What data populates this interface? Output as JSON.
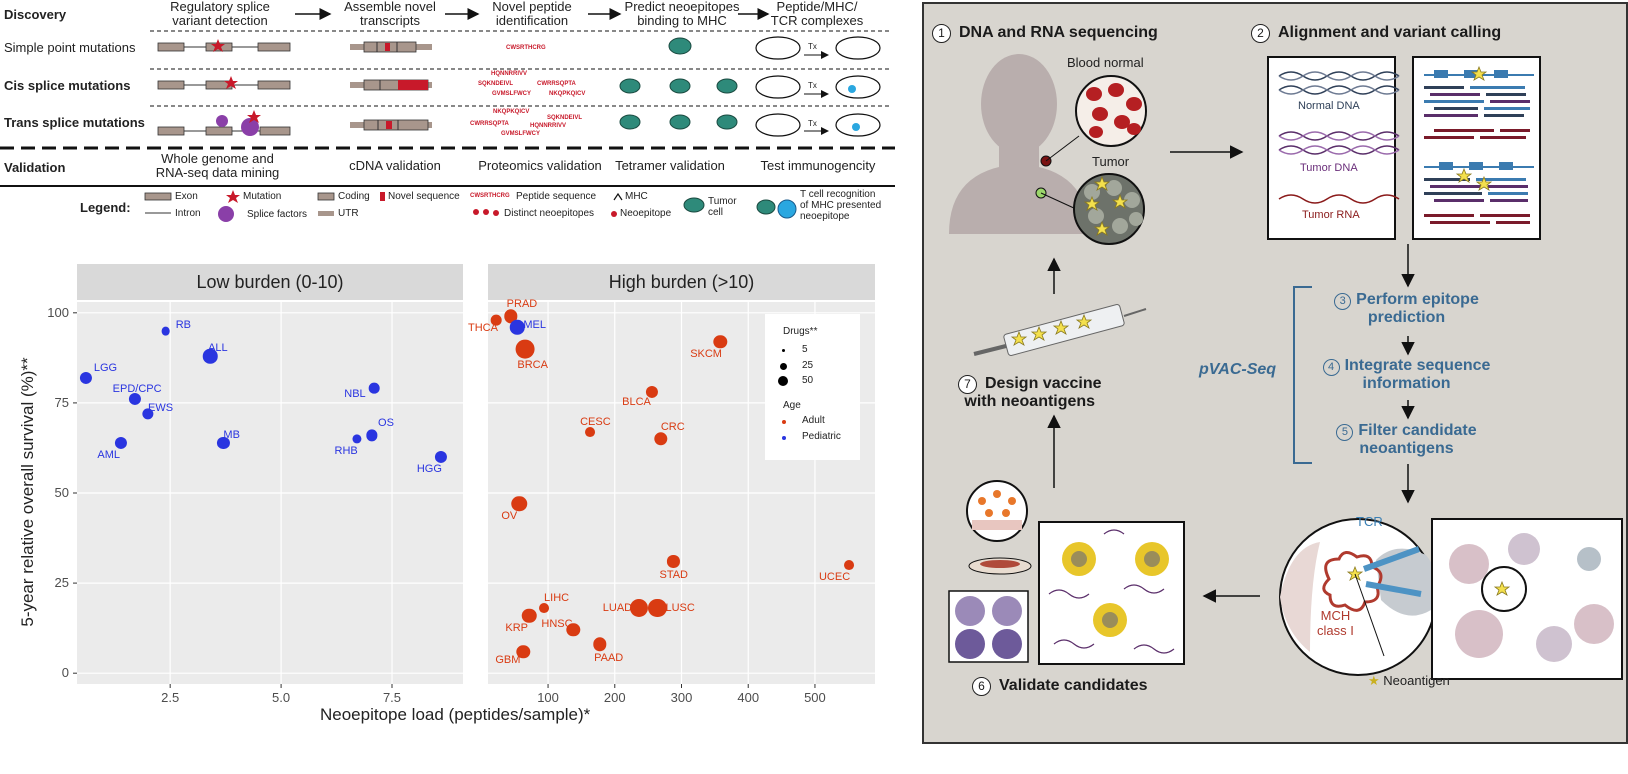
{
  "discovery": {
    "row_headers": {
      "discovery": "Discovery",
      "simple": "Simple point mutations",
      "cis": "Cis splice mutations",
      "trans": "Trans splice mutations",
      "validation": "Validation"
    },
    "steps": [
      "Regulatory splice\nvariant detection",
      "Assemble novel\ntranscripts",
      "Novel peptide\nidentification",
      "Predict neoepitopes\nbinding to MHC",
      "Peptide/MHC/\nTCR complexes"
    ],
    "validation_steps": [
      "Whole genome and\nRNA-seq data mining",
      "cDNA validation",
      "Proteomics validation",
      "Tetramer validation",
      "Test immunogencity"
    ],
    "peptides": {
      "simple": [
        "CWSRTHCRG"
      ],
      "cis": [
        "HQNNRRIVV",
        "SQKNDEIVL",
        "CWRRSQPTA",
        "GVMSLFWCY",
        "NKQPKQICV"
      ],
      "trans": [
        "NKQPKQICV",
        "SQKNDEIVL",
        "CWRRSQPTA",
        "HQNNRRIVV",
        "GVMSLFWCY"
      ]
    },
    "tx_label": "Tx",
    "legend": {
      "title": "Legend:",
      "exon": "Exon",
      "intron": "Intron",
      "mutation": "Mutation",
      "splice_factors": "Splice factors",
      "coding": "Coding",
      "utr": "UTR",
      "novel_sequence": "Novel sequence",
      "peptide_seq_sample": "CWSRTHCRG",
      "peptide_sequence": "Peptide sequence",
      "distinct_neoepitopes": "Distinct neoepitopes",
      "mhc": "MHC",
      "neoepitope": "Neoepitope",
      "tumor_cell": "Tumor\ncell",
      "tcell": "T cell recognition\nof MHC presented\nneoepitope"
    }
  },
  "scatter": {
    "facets": [
      "Low burden (0-10)",
      "High burden (>10)"
    ],
    "ylabel": "5-year relative overall survival (%)**",
    "xlabel": "Neoepitope load (peptides/sample)*",
    "legend": {
      "drugs_title": "Drugs**",
      "drug_sizes": [
        "5",
        "25",
        "50"
      ],
      "age_title": "Age",
      "adult": "Adult",
      "pediatric": "Pediatric"
    }
  },
  "chart_data": [
    {
      "type": "scatter",
      "title": "Low burden (0-10)",
      "xlim": [
        0.4,
        9.1
      ],
      "ylim": [
        -3,
        103
      ],
      "xticks": [
        "2.5",
        "5.0",
        "7.5"
      ],
      "xtick_values": [
        2.5,
        5.0,
        7.5
      ],
      "yticks": [
        "0",
        "25",
        "50",
        "75",
        "100"
      ],
      "ytick_values": [
        0,
        25,
        50,
        75,
        100
      ],
      "series": [
        {
          "name": "Pediatric",
          "color": "#2a35e0",
          "points": [
            {
              "label": "RB",
              "x": 2.4,
              "y": 95,
              "drugs": 5
            },
            {
              "label": "ALL",
              "x": 3.4,
              "y": 88,
              "drugs": 25
            },
            {
              "label": "LGG",
              "x": 0.6,
              "y": 82,
              "drugs": 15
            },
            {
              "label": "EPD/CPC",
              "x": 1.7,
              "y": 76,
              "drugs": 15
            },
            {
              "label": "EWS",
              "x": 2.0,
              "y": 72,
              "drugs": 12
            },
            {
              "label": "AML",
              "x": 1.4,
              "y": 64,
              "drugs": 15
            },
            {
              "label": "MB",
              "x": 3.7,
              "y": 64,
              "drugs": 15
            },
            {
              "label": "NBL",
              "x": 7.1,
              "y": 79,
              "drugs": 10
            },
            {
              "label": "OS",
              "x": 7.05,
              "y": 66,
              "drugs": 12
            },
            {
              "label": "RHB",
              "x": 6.7,
              "y": 65,
              "drugs": 6
            },
            {
              "label": "HGG",
              "x": 8.6,
              "y": 60,
              "drugs": 15
            }
          ]
        }
      ]
    },
    {
      "type": "scatter",
      "title": "High burden (>10)",
      "xlim": [
        10,
        590
      ],
      "ylim": [
        -3,
        103
      ],
      "xticks": [
        "100",
        "200",
        "300",
        "400",
        "500"
      ],
      "xtick_values": [
        100,
        200,
        300,
        400,
        500
      ],
      "yticks": [
        "0",
        "25",
        "50",
        "75",
        "100"
      ],
      "ytick_values": [
        0,
        25,
        50,
        75,
        100
      ],
      "series": [
        {
          "name": "Adult",
          "color": "#d93b12",
          "points": [
            {
              "label": "THCA",
              "x": 22,
              "y": 98,
              "drugs": 10
            },
            {
              "label": "PRAD",
              "x": 44,
              "y": 99,
              "drugs": 20
            },
            {
              "label": "BRCA",
              "x": 66,
              "y": 90,
              "drugs": 50
            },
            {
              "label": "SKCM",
              "x": 358,
              "y": 92,
              "drugs": 20
            },
            {
              "label": "BLCA",
              "x": 256,
              "y": 78,
              "drugs": 15
            },
            {
              "label": "CESC",
              "x": 163,
              "y": 67,
              "drugs": 8
            },
            {
              "label": "CRC",
              "x": 269,
              "y": 65,
              "drugs": 20
            },
            {
              "label": "OV",
              "x": 57,
              "y": 47,
              "drugs": 30
            },
            {
              "label": "STAD",
              "x": 288,
              "y": 31,
              "drugs": 15
            },
            {
              "label": "UCEC",
              "x": 551,
              "y": 30,
              "drugs": 8
            },
            {
              "label": "LIHC",
              "x": 94,
              "y": 18,
              "drugs": 8
            },
            {
              "label": "LUAD",
              "x": 236,
              "y": 18,
              "drugs": 45
            },
            {
              "label": "LUSC",
              "x": 264,
              "y": 18,
              "drugs": 45
            },
            {
              "label": "KRP",
              "x": 72,
              "y": 16,
              "drugs": 25
            },
            {
              "label": "HNSC",
              "x": 138,
              "y": 12,
              "drugs": 20
            },
            {
              "label": "PAAD",
              "x": 178,
              "y": 8,
              "drugs": 20
            },
            {
              "label": "GBM",
              "x": 63,
              "y": 6,
              "drugs": 20
            }
          ]
        },
        {
          "name": "Pediatric",
          "color": "#2a35e0",
          "points": [
            {
              "label": "MEL",
              "x": 54,
              "y": 96,
              "drugs": 25
            }
          ]
        }
      ]
    }
  ],
  "workflow": {
    "step1": {
      "num": "1",
      "title": "DNA and RNA sequencing"
    },
    "step2": {
      "num": "2",
      "title": "Alignment and variant calling"
    },
    "blood_normal": "Blood normal",
    "tumor": "Tumor",
    "normal_dna": "Normal DNA",
    "tumor_dna": "Tumor DNA",
    "tumor_rna": "Tumor RNA",
    "pvac": "pVAC-Seq",
    "step3": {
      "num": "3",
      "title": "Perform epitope\nprediction"
    },
    "step4": {
      "num": "4",
      "title": "Integrate sequence\ninformation"
    },
    "step5": {
      "num": "5",
      "title": "Filter candidate\nneoantigens"
    },
    "step6": {
      "num": "6",
      "title": "Validate candidates"
    },
    "step7": {
      "num": "7",
      "title": "Design vaccine\nwith neoantigens"
    },
    "tcr": "TCR",
    "mch": "MCH\nclass I",
    "neoantigen": "Neoantigen",
    "colors": {
      "panel_bg": "#d8d5cf",
      "accent_blue": "#3a6a92",
      "red": "#c8192a"
    }
  }
}
